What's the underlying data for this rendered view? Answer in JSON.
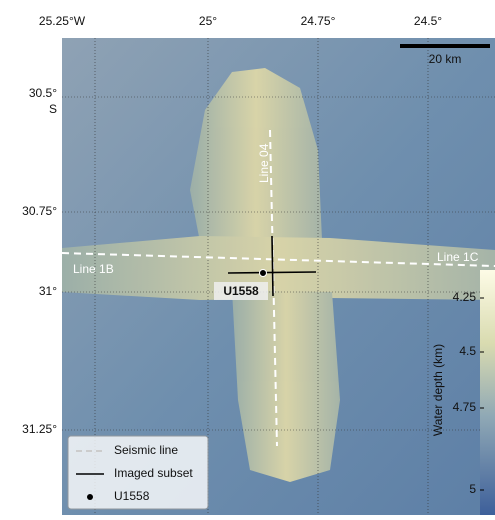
{
  "lon_labels": [
    "25.25°W",
    "25°",
    "24.75°",
    "24.5°"
  ],
  "lat_labels": [
    "30.5°",
    "30.75°",
    "31°",
    "31.25°"
  ],
  "lat_hemisphere": "S",
  "scale_bar": "20 km",
  "seismic_lines": [
    "Line 04",
    "Line 1B",
    "Line 1C"
  ],
  "site": "U1558",
  "legend": [
    "Seismic line",
    "Imaged subset",
    "U1558"
  ],
  "colorbar": {
    "title": "Water depth (km)",
    "ticks": [
      "4.25",
      "4.5",
      "4.75",
      "5"
    ]
  }
}
